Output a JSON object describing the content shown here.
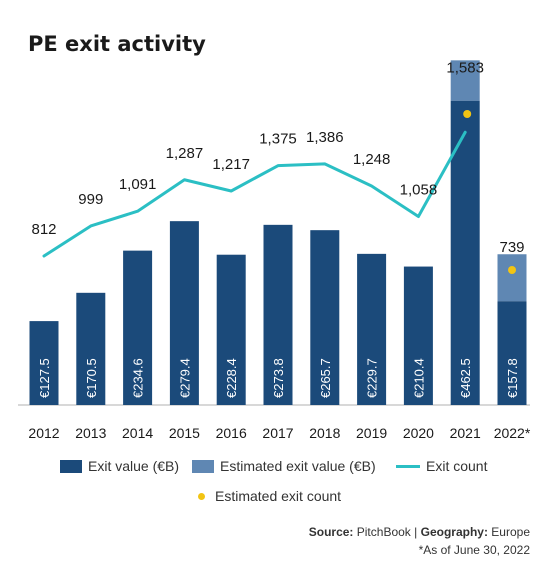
{
  "chart_data": {
    "type": "bar",
    "title": "PE exit activity",
    "categories": [
      "2012",
      "2013",
      "2014",
      "2015",
      "2016",
      "2017",
      "2018",
      "2019",
      "2020",
      "2021",
      "2022*"
    ],
    "series": [
      {
        "name": "Exit value (€B)",
        "kind": "bar",
        "values": [
          127.5,
          170.5,
          234.6,
          279.4,
          228.4,
          273.8,
          265.7,
          229.7,
          210.4,
          462.5,
          157.8
        ],
        "labels": [
          "€127.5",
          "€170.5",
          "€234.6",
          "€279.4",
          "€228.4",
          "€273.8",
          "€265.7",
          "€229.7",
          "€210.4",
          "€462.5",
          "€157.8"
        ],
        "color": "#1b4a7a"
      },
      {
        "name": "Estimated exit value (€B)",
        "kind": "bar-stacked",
        "values": [
          0,
          0,
          0,
          0,
          0,
          0,
          0,
          0,
          0,
          61.3,
          71.3
        ],
        "color": "#5f87b3"
      },
      {
        "name": "Exit count",
        "kind": "line",
        "values": [
          812,
          999,
          1091,
          1287,
          1217,
          1375,
          1386,
          1248,
          1058,
          1583,
          null
        ],
        "labels": [
          "812",
          "999",
          "1,091",
          "1,287",
          "1,217",
          "1,375",
          "1,386",
          "1,248",
          "1,058",
          "1,583",
          ""
        ],
        "color": "#2bbfc4"
      },
      {
        "name": "Estimated exit count",
        "kind": "point",
        "values": [
          null,
          null,
          null,
          null,
          null,
          null,
          null,
          null,
          null,
          1583,
          739
        ],
        "labels": [
          "",
          "",
          "",
          "",
          "",
          "",
          "",
          "",
          "",
          "",
          "739"
        ],
        "color": "#f2c413"
      }
    ],
    "grid": false,
    "legend_placement": "bottom"
  },
  "footer": {
    "source_label": "Source:",
    "source_value": "PitchBook",
    "separator": "|",
    "geo_label": "Geography:",
    "geo_value": "Europe",
    "note": "*As of June 30, 2022"
  }
}
